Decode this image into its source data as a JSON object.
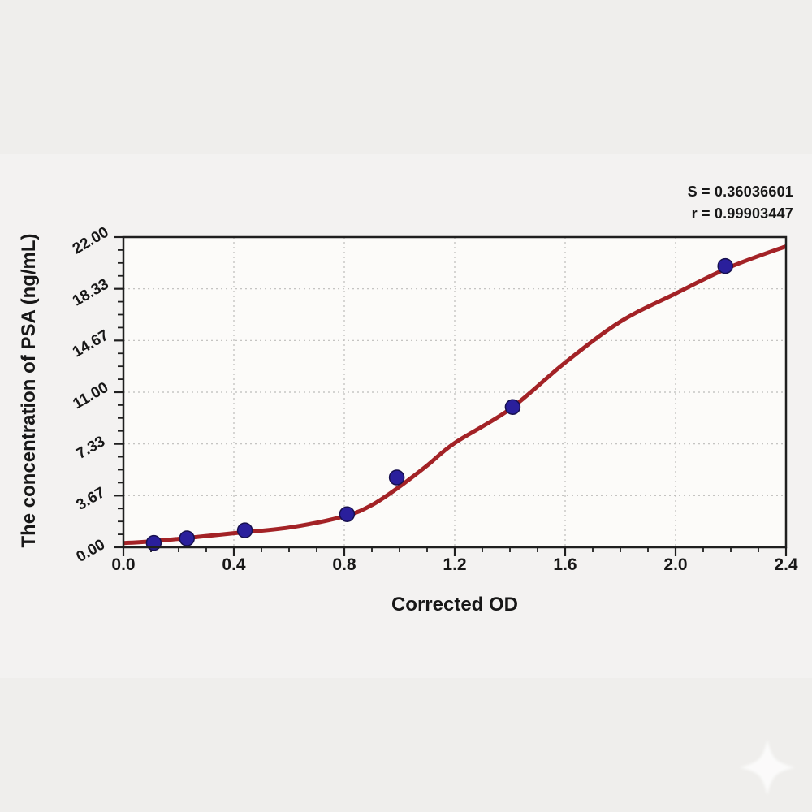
{
  "annotation": {
    "s_line": "S = 0.36036601",
    "r_line": "r = 0.99903447"
  },
  "chart_data": {
    "type": "scatter",
    "title": "",
    "xlabel": "Corrected OD",
    "ylabel": "The concentration of PSA (ng/mL)",
    "xlim": [
      0.0,
      2.4
    ],
    "ylim": [
      0.0,
      22.0
    ],
    "grid": "dashed-on-major-ticks",
    "legend_position": "none",
    "x_ticks": {
      "values": [
        0.0,
        0.4,
        0.8,
        1.2,
        1.6,
        2.0,
        2.4
      ],
      "labels": [
        "0.0",
        "0.4",
        "0.8",
        "1.2",
        "1.6",
        "2.0",
        "2.4"
      ],
      "minor_step": 0.1
    },
    "y_ticks": {
      "values": [
        0.0,
        3.667,
        7.333,
        11.0,
        14.667,
        18.333,
        22.0
      ],
      "labels": [
        "0.00",
        "3.67",
        "7.33",
        "11.00",
        "14.67",
        "18.33",
        "22.00"
      ],
      "minor_divisions": 4
    },
    "series": [
      {
        "name": "standard-points",
        "type": "scatter",
        "marker": "circle",
        "points": [
          {
            "x": 0.11,
            "y": 0.31
          },
          {
            "x": 0.23,
            "y": 0.63
          },
          {
            "x": 0.44,
            "y": 1.2
          },
          {
            "x": 0.81,
            "y": 2.35
          },
          {
            "x": 0.99,
            "y": 4.95
          },
          {
            "x": 1.41,
            "y": 9.95
          },
          {
            "x": 2.18,
            "y": 19.95
          }
        ]
      },
      {
        "name": "fitted-curve",
        "type": "line",
        "shape": "sigmoid-4PL-fit",
        "samples": [
          [
            0.0,
            0.3
          ],
          [
            0.1,
            0.42
          ],
          [
            0.2,
            0.6
          ],
          [
            0.4,
            1.0
          ],
          [
            0.6,
            1.4
          ],
          [
            0.8,
            2.2
          ],
          [
            0.9,
            3.0
          ],
          [
            1.0,
            4.3
          ],
          [
            1.1,
            5.8
          ],
          [
            1.2,
            7.4
          ],
          [
            1.4,
            9.8
          ],
          [
            1.6,
            13.1
          ],
          [
            1.8,
            16.0
          ],
          [
            2.0,
            18.0
          ],
          [
            2.2,
            19.9
          ],
          [
            2.4,
            21.35
          ]
        ]
      }
    ],
    "annotations": [
      "S = 0.36036601",
      "r = 0.99903447"
    ],
    "colors": {
      "curve": "#a32226",
      "marker": "#2a1f9c",
      "marker_edge": "#17104f",
      "axis": "#1f1f1f",
      "grid": "#bdbcba",
      "text": "#171717",
      "page_background": "#efeeec",
      "plot_background": "#fcfbf9"
    }
  }
}
